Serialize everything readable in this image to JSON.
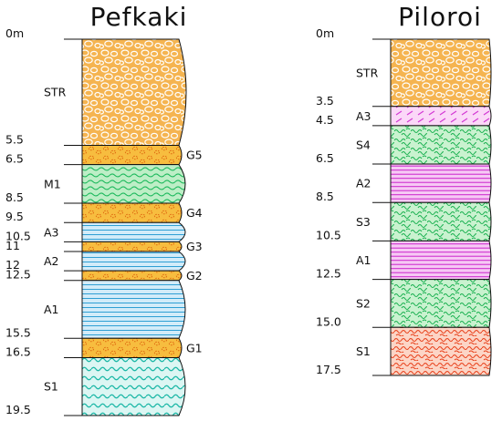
{
  "sections": [
    {
      "name": "Pefkaki",
      "layers": [
        {
          "code": "STR",
          "lithology": "gravel",
          "top_label": "0m",
          "top": 0,
          "bottom": 5.5
        },
        {
          "code": "G5",
          "lithology": "gravel-fine",
          "top_label": "5.5",
          "top": 5.5,
          "bottom": 6.5
        },
        {
          "code": "M1",
          "lithology": "marl",
          "top_label": "6.5",
          "top": 6.5,
          "bottom": 8.5
        },
        {
          "code": "G4",
          "lithology": "gravel-fine",
          "top_label": "8.5",
          "top": 8.5,
          "bottom": 9.5
        },
        {
          "code": "A3",
          "lithology": "clay",
          "top_label": "9.5",
          "top": 9.5,
          "bottom": 10.5
        },
        {
          "code": "G3",
          "lithology": "gravel-fine",
          "top_label": "10.5",
          "top": 10.5,
          "bottom": 11
        },
        {
          "code": "A2",
          "lithology": "clay",
          "top_label": "11",
          "top": 11,
          "bottom": 12
        },
        {
          "code": "G2",
          "lithology": "gravel-fine",
          "top_label": "12",
          "top": 12,
          "bottom": 12.5
        },
        {
          "code": "A1",
          "lithology": "clay",
          "top_label": "12.5",
          "top": 12.5,
          "bottom": 15.5
        },
        {
          "code": "G1",
          "lithology": "gravel-fine",
          "top_label": "15.5",
          "top": 15.5,
          "bottom": 16.5
        },
        {
          "code": "S1",
          "lithology": "sand",
          "top_label": "16.5",
          "top": 16.5,
          "bottom": 19.5
        }
      ],
      "base_label": "19.5"
    },
    {
      "name": "Piloroi",
      "layers": [
        {
          "code": "STR",
          "lithology": "gravel",
          "top_label": "0m",
          "top": 0,
          "bottom": 3.5
        },
        {
          "code": "A3",
          "lithology": "clay-thin",
          "top_label": "3.5",
          "top": 3.5,
          "bottom": 4.5
        },
        {
          "code": "S4",
          "lithology": "silt",
          "top_label": "4.5",
          "top": 4.5,
          "bottom": 6.5
        },
        {
          "code": "A2",
          "lithology": "clay-purple",
          "top_label": "6.5",
          "top": 6.5,
          "bottom": 8.5
        },
        {
          "code": "S3",
          "lithology": "silt",
          "top_label": "8.5",
          "top": 8.5,
          "bottom": 10.5
        },
        {
          "code": "A1",
          "lithology": "clay-purple",
          "top_label": "10.5",
          "top": 10.5,
          "bottom": 12.5
        },
        {
          "code": "S2",
          "lithology": "silt",
          "top_label": "12.5",
          "top": 12.5,
          "bottom": 15.0
        },
        {
          "code": "S1",
          "lithology": "sand-red",
          "top_label": "15.0",
          "top": 15.0,
          "bottom": 17.5
        }
      ],
      "base_label": "17.5"
    }
  ],
  "colors": {
    "gravel": "#f5b450",
    "gravel_line": "#ffffff",
    "green": "#19b85a",
    "green_bg": "#bdeec6",
    "clay_line": "#2f9fd4",
    "clay_bg": "#d2ecf9",
    "purple": "#cc22cc",
    "purple_bg": "#f6c9f4",
    "cyan": "#1bb7a6",
    "cyan_bg": "#dcf6f3",
    "red": "#e8401a",
    "red_bg": "#fcd5c6",
    "ink": "#111111"
  }
}
